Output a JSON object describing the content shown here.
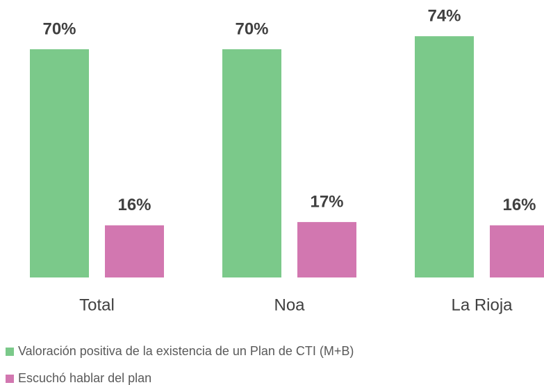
{
  "chart_data": {
    "type": "bar",
    "categories": [
      "Total",
      "Noa",
      "La Rioja"
    ],
    "series": [
      {
        "name": "Valoración positiva de la existencia de un Plan de CTI (M+B)",
        "color": "#7bc98a",
        "values": [
          70,
          70,
          74
        ],
        "value_labels": [
          "70%",
          "70%",
          "74%"
        ]
      },
      {
        "name": "Escuchó hablar del plan",
        "color": "#d277b0",
        "values": [
          16,
          17,
          16
        ],
        "value_labels": [
          "16%",
          "17%",
          "16%"
        ]
      }
    ],
    "ylim": [
      0,
      80
    ]
  }
}
